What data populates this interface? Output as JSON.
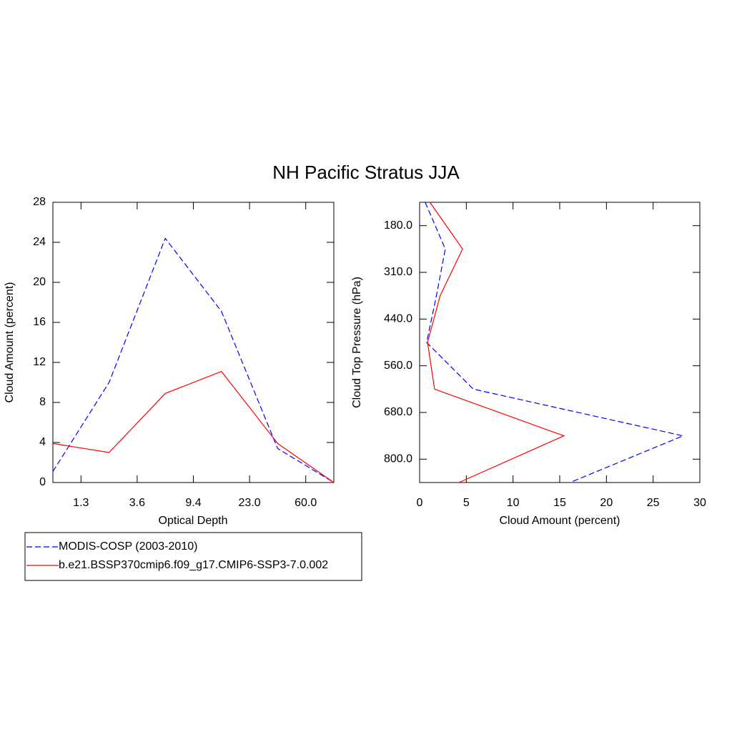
{
  "chart_data": [
    {
      "type": "line",
      "title": "NH Pacific Stratus JJA",
      "xlabel": "Optical Depth",
      "ylabel": "Cloud Amount (percent)",
      "xlim": [
        0,
        5
      ],
      "xticks": [
        {
          "value": 0.5,
          "label": "1.3"
        },
        {
          "value": 1.5,
          "label": "3.6"
        },
        {
          "value": 2.5,
          "label": "9.4"
        },
        {
          "value": 3.5,
          "label": "23.0"
        },
        {
          "value": 4.5,
          "label": "60.0"
        }
      ],
      "ylim": [
        0,
        28
      ],
      "yticks": [
        0,
        4,
        8,
        12,
        16,
        20,
        24,
        28
      ],
      "series": [
        {
          "name": "MODIS-COSP (2003-2010)",
          "color": "#0000ff",
          "dash": true,
          "values": [
            1.1,
            10,
            24.4,
            17.1,
            3.4,
            0
          ]
        },
        {
          "name": "b.e21.BSSP370cmip6.f09_g17.CMIP6-SSP3-7.0.002",
          "color": "#ff0000",
          "dash": false,
          "values": [
            3.9,
            3.0,
            8.9,
            11.1,
            3.9,
            0
          ]
        }
      ]
    },
    {
      "type": "line",
      "orientation": "horizontal",
      "xlabel": "Cloud Amount (percent)",
      "ylabel": "Cloud Top Pressure (hPa)",
      "xlim": [
        0,
        30
      ],
      "xticks": [
        0,
        5,
        10,
        15,
        20,
        25,
        30
      ],
      "ylim": [
        6,
        0
      ],
      "yticks": [
        {
          "value": 0.5,
          "label": "180.0"
        },
        {
          "value": 1.5,
          "label": "310.0"
        },
        {
          "value": 2.5,
          "label": "440.0"
        },
        {
          "value": 3.5,
          "label": "560.0"
        },
        {
          "value": 4.5,
          "label": "680.0"
        },
        {
          "value": 5.5,
          "label": "800.0"
        }
      ],
      "series": [
        {
          "color": "#0000ff",
          "dash": true,
          "values": [
            0.6,
            2.75,
            1.8,
            0.75,
            5.75,
            28.2,
            16.1
          ]
        },
        {
          "color": "#ff0000",
          "dash": false,
          "values": [
            1.1,
            4.6,
            2.2,
            0.85,
            1.6,
            15.45,
            4.2
          ]
        }
      ]
    }
  ]
}
